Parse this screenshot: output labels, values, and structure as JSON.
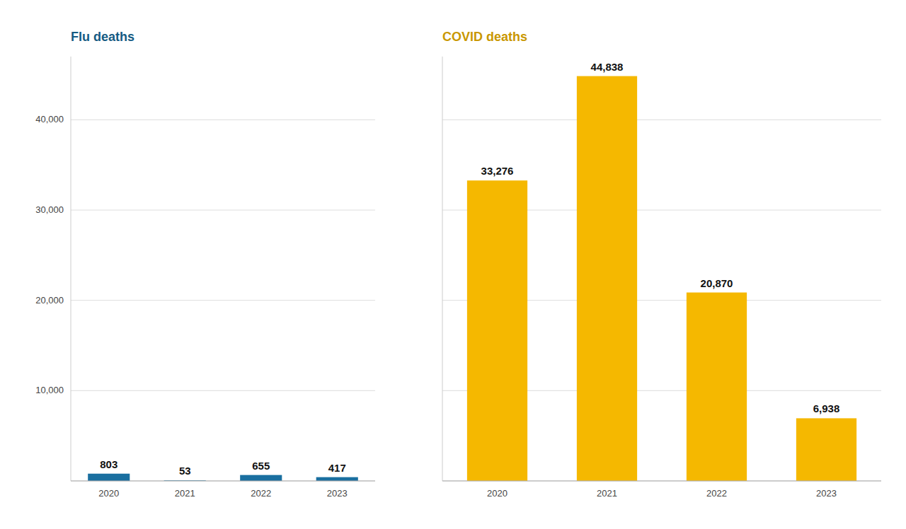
{
  "chart_data": [
    {
      "type": "bar",
      "title": "Flu deaths",
      "categories": [
        "2020",
        "2021",
        "2022",
        "2023"
      ],
      "values": [
        803,
        53,
        655,
        417
      ],
      "color": "#1a6fa0",
      "ylim": [
        0,
        47000
      ],
      "yticks": [
        {
          "value": 0,
          "label": null
        },
        {
          "value": 10000,
          "label": "10,000"
        },
        {
          "value": 20000,
          "label": "20,000"
        },
        {
          "value": 30000,
          "label": "30,000"
        },
        {
          "value": 40000,
          "label": "40,000"
        }
      ],
      "grid": true,
      "data_labels": true
    },
    {
      "type": "bar",
      "title": "COVID deaths",
      "categories": [
        "2020",
        "2021",
        "2022",
        "2023"
      ],
      "values": [
        33276,
        44838,
        20870,
        6938
      ],
      "value_labels": [
        "33,276",
        "44,838",
        "20,870",
        "6,938"
      ],
      "color": "#f5b800",
      "ylim": [
        0,
        47000
      ],
      "yticks": [
        0,
        10000,
        20000,
        30000,
        40000
      ],
      "grid": true,
      "data_labels": true,
      "tick_labels": "x"
    }
  ]
}
